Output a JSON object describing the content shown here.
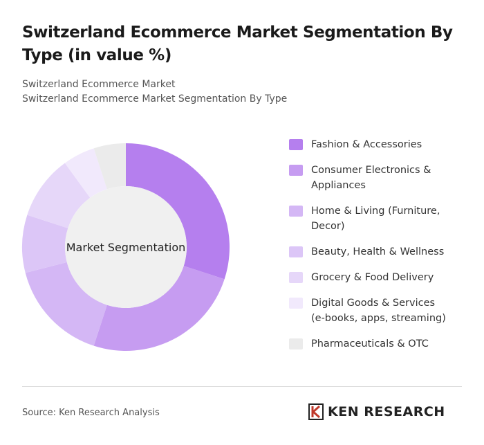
{
  "chart_data": {
    "type": "pie",
    "title": "Switzerland Ecommerce Market Segmentation By Type (in value %)",
    "breadcrumb": "Switzerland Ecommerce Market",
    "subtitle": "Switzerland Ecommerce Market Segmentation By Type",
    "center_label": "Market Segmentation",
    "categories": [
      "Fashion & Accessories",
      "Consumer Electronics & Appliances",
      "Home & Living (Furniture, Decor)",
      "Beauty, Health & Wellness",
      "Grocery & Food Delivery",
      "Digital Goods & Services (e-books, apps, streaming)",
      "Pharmaceuticals & OTC"
    ],
    "values": [
      30,
      25,
      16,
      9,
      10,
      5,
      5
    ],
    "colors": [
      "#b57fee",
      "#c69cf1",
      "#d4b7f5",
      "#dcc6f7",
      "#e6d7f9",
      "#f1e9fc",
      "#ebebeb"
    ],
    "legend": "right"
  },
  "footer": {
    "source": "Source: Ken Research Analysis",
    "brand": "KEN RESEARCH"
  }
}
